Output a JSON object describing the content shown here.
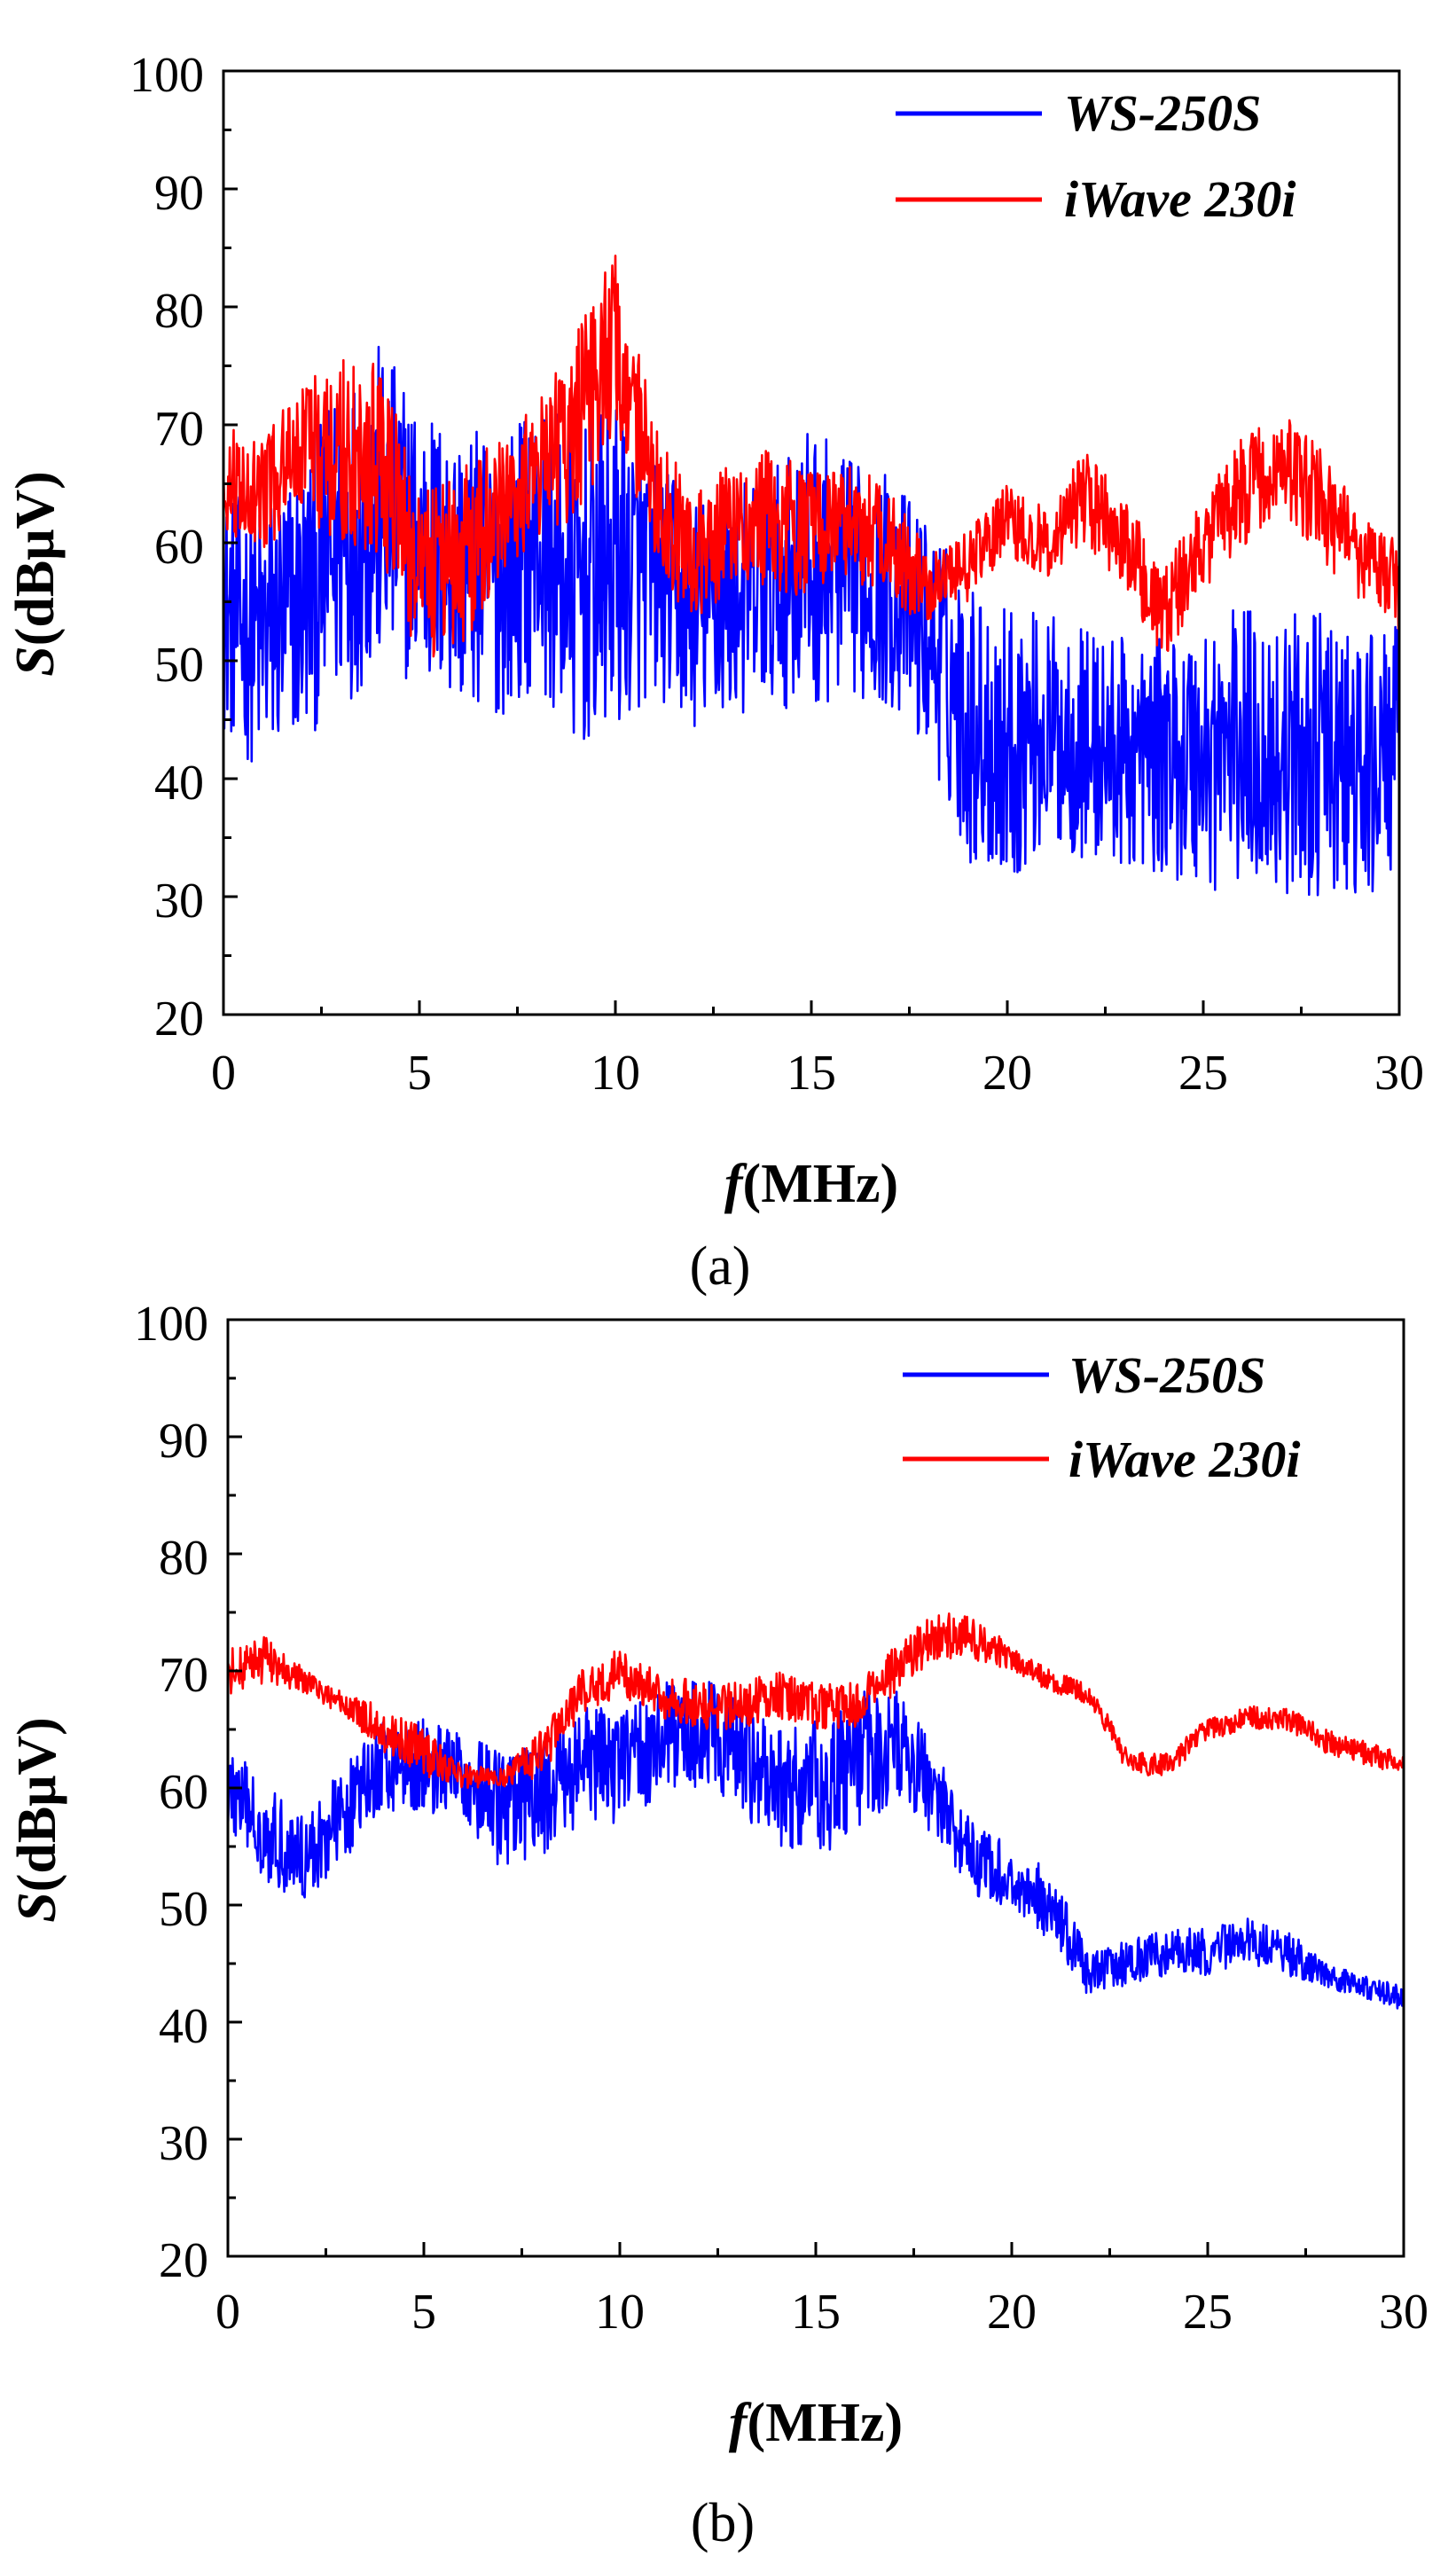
{
  "chart_data": [
    {
      "type": "line",
      "panel_label": "a",
      "caption": "(a)",
      "xlabel": {
        "italic": "f",
        "rest": "(MHz)"
      },
      "ylabel": {
        "italic": "S",
        "rest": "(dBμV)"
      },
      "xlim": [
        0,
        30
      ],
      "ylim": [
        20,
        100
      ],
      "xticks": [
        "0",
        "5",
        "10",
        "15",
        "20",
        "25",
        "30"
      ],
      "yticks": [
        "20",
        "30",
        "40",
        "50",
        "60",
        "70",
        "80",
        "90",
        "100"
      ],
      "grid": false,
      "legend_position": "top-right",
      "series": [
        {
          "name": "WS-250S",
          "color": "#0000ff",
          "x": [
            0,
            1,
            2,
            3,
            4,
            5,
            6,
            7,
            8,
            9,
            10,
            11,
            12,
            13,
            14,
            15,
            16,
            17,
            18,
            19,
            20,
            21,
            22,
            23,
            24,
            25,
            26,
            27,
            28,
            29,
            30
          ],
          "mean": [
            54,
            52,
            55,
            60,
            63,
            60,
            58,
            57,
            60,
            56,
            58,
            57,
            54,
            55,
            56,
            58,
            57,
            56,
            52,
            45,
            43,
            44,
            43,
            42,
            42,
            42,
            43,
            42,
            42,
            40,
            43
          ],
          "amplitude": [
            10,
            12,
            12,
            14,
            14,
            12,
            12,
            12,
            12,
            14,
            14,
            10,
            10,
            10,
            10,
            12,
            10,
            10,
            10,
            12,
            12,
            10,
            10,
            10,
            10,
            12,
            12,
            12,
            12,
            12,
            10
          ]
        },
        {
          "name": "iWave 230i",
          "color": "#ff0000",
          "x": [
            0,
            1,
            2,
            3,
            4,
            5,
            6,
            7,
            8,
            9,
            10,
            11,
            12,
            13,
            14,
            15,
            16,
            17,
            18,
            19,
            20,
            21,
            22,
            23,
            24,
            25,
            26,
            27,
            28,
            29,
            30
          ],
          "mean": [
            65,
            64,
            68,
            68,
            67,
            58,
            58,
            63,
            66,
            70,
            77,
            65,
            58,
            62,
            62,
            60,
            62,
            60,
            56,
            58,
            62,
            60,
            64,
            60,
            54,
            60,
            64,
            67,
            63,
            59,
            56
          ],
          "amplitude": [
            5,
            5,
            6,
            8,
            8,
            8,
            8,
            6,
            6,
            8,
            8,
            6,
            6,
            5,
            6,
            6,
            5,
            5,
            3,
            3,
            3,
            3,
            4,
            4,
            4,
            4,
            5,
            4,
            5,
            4,
            4
          ]
        }
      ]
    },
    {
      "type": "line",
      "panel_label": "b",
      "caption": "(b)",
      "xlabel": {
        "italic": "f",
        "rest": "(MHz)"
      },
      "ylabel": {
        "italic": "S",
        "rest": "(dBμV)"
      },
      "xlim": [
        0,
        30
      ],
      "ylim": [
        20,
        100
      ],
      "xticks": [
        "0",
        "5",
        "10",
        "15",
        "20",
        "25",
        "30"
      ],
      "yticks": [
        "20",
        "30",
        "40",
        "50",
        "60",
        "70",
        "80",
        "90",
        "100"
      ],
      "grid": false,
      "legend_position": "top-right",
      "series": [
        {
          "name": "WS-250S",
          "color": "#0000ff",
          "x": [
            0,
            1,
            2,
            3,
            4,
            5,
            6,
            7,
            8,
            9,
            10,
            11,
            12,
            13,
            14,
            15,
            16,
            17,
            18,
            19,
            20,
            21,
            22,
            23,
            24,
            25,
            26,
            27,
            28,
            29,
            30
          ],
          "mean": [
            60,
            56,
            54,
            58,
            62,
            62,
            61,
            58,
            59,
            62,
            62,
            64,
            65,
            63,
            60,
            60,
            62,
            64,
            60,
            54,
            52,
            50,
            44,
            45,
            46,
            46,
            47,
            46,
            44,
            43,
            42
          ],
          "amplitude": [
            4,
            4,
            4,
            4,
            4,
            4,
            4,
            5,
            5,
            5,
            5,
            5,
            5,
            5,
            5,
            6,
            6,
            5,
            4,
            3,
            3,
            3,
            2,
            2,
            2,
            2,
            2,
            2,
            1,
            1,
            1
          ]
        },
        {
          "name": "iWave 230i",
          "color": "#ff0000",
          "x": [
            0,
            1,
            2,
            3,
            4,
            5,
            6,
            7,
            8,
            9,
            10,
            11,
            12,
            13,
            14,
            15,
            16,
            17,
            18,
            19,
            20,
            21,
            22,
            23,
            24,
            25,
            26,
            27,
            28,
            29,
            30
          ],
          "mean": [
            70,
            71,
            69,
            67,
            65,
            63,
            61,
            61,
            63,
            68,
            70,
            68,
            67,
            67,
            68,
            67,
            67,
            70,
            73,
            73,
            71,
            69,
            68,
            62,
            62,
            65,
            66,
            66,
            64,
            63,
            62
          ],
          "amplitude": [
            2,
            2,
            1,
            1,
            2,
            2,
            1,
            1,
            2,
            2,
            2,
            2,
            2,
            2,
            2,
            2,
            2,
            2,
            2,
            2,
            1,
            1,
            1,
            1,
            1,
            1,
            1,
            1,
            1,
            1,
            1
          ]
        }
      ]
    }
  ]
}
